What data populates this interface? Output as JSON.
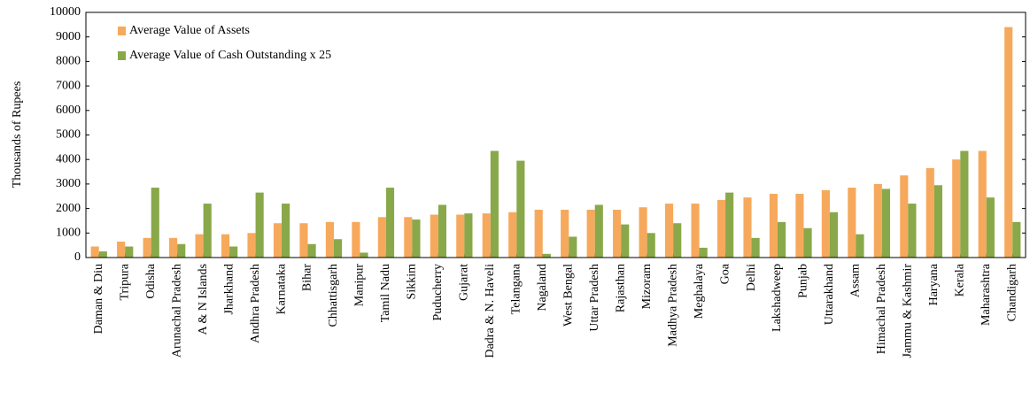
{
  "chart_data": {
    "type": "bar",
    "y_label": "Thousands of Rupees",
    "categories": [
      "Daman & Diu",
      "Tripura",
      "Odisha",
      "Arunachal Pradesh",
      "A & N Islands",
      "Jharkhand",
      "Andhra Pradesh",
      "Karnataka",
      "Bihar",
      "Chhattisgarh",
      "Manipur",
      "Tamil Nadu",
      "Sikkim",
      "Puducherry",
      "Gujarat",
      "Dadra & N. Haveli",
      "Telangana",
      "Nagaland",
      "West Bengal",
      "Uttar Pradesh",
      "Rajasthan",
      "Mizoram",
      "Madhya Pradesh",
      "Meghalaya",
      "Goa",
      "Delhi",
      "Lakshadweep",
      "Punjab",
      "Uttarakhand",
      "Assam",
      "Himachal Pradesh",
      "Jammu & Kashmir",
      "Haryana",
      "Kerala",
      "Maharashtra",
      "Chandigarh"
    ],
    "series": [
      {
        "name": "Average Value of Assets",
        "color": "#f6a95c",
        "values": [
          450,
          650,
          800,
          800,
          950,
          950,
          1000,
          1400,
          1400,
          1450,
          1450,
          1650,
          1650,
          1750,
          1750,
          1800,
          1850,
          1950,
          1950,
          1950,
          1950,
          2050,
          2200,
          2200,
          2350,
          2450,
          2600,
          2600,
          2750,
          2850,
          3000,
          3350,
          3650,
          4000,
          4350,
          9400
        ]
      },
      {
        "name": "Average Value of Cash Outstanding x 25",
        "color": "#89a84a",
        "values": [
          250,
          450,
          2850,
          550,
          2200,
          450,
          2650,
          2200,
          550,
          750,
          200,
          2850,
          1550,
          2150,
          1800,
          4350,
          3950,
          150,
          850,
          2150,
          1350,
          1000,
          1400,
          400,
          2650,
          800,
          1450,
          1200,
          1850,
          950,
          2800,
          2200,
          2950,
          4350,
          2450,
          1450
        ]
      }
    ],
    "ylim": [
      0,
      10000
    ],
    "yticks": [
      0,
      1000,
      2000,
      3000,
      4000,
      5000,
      6000,
      7000,
      8000,
      9000,
      10000
    ],
    "legend": "upper left"
  }
}
